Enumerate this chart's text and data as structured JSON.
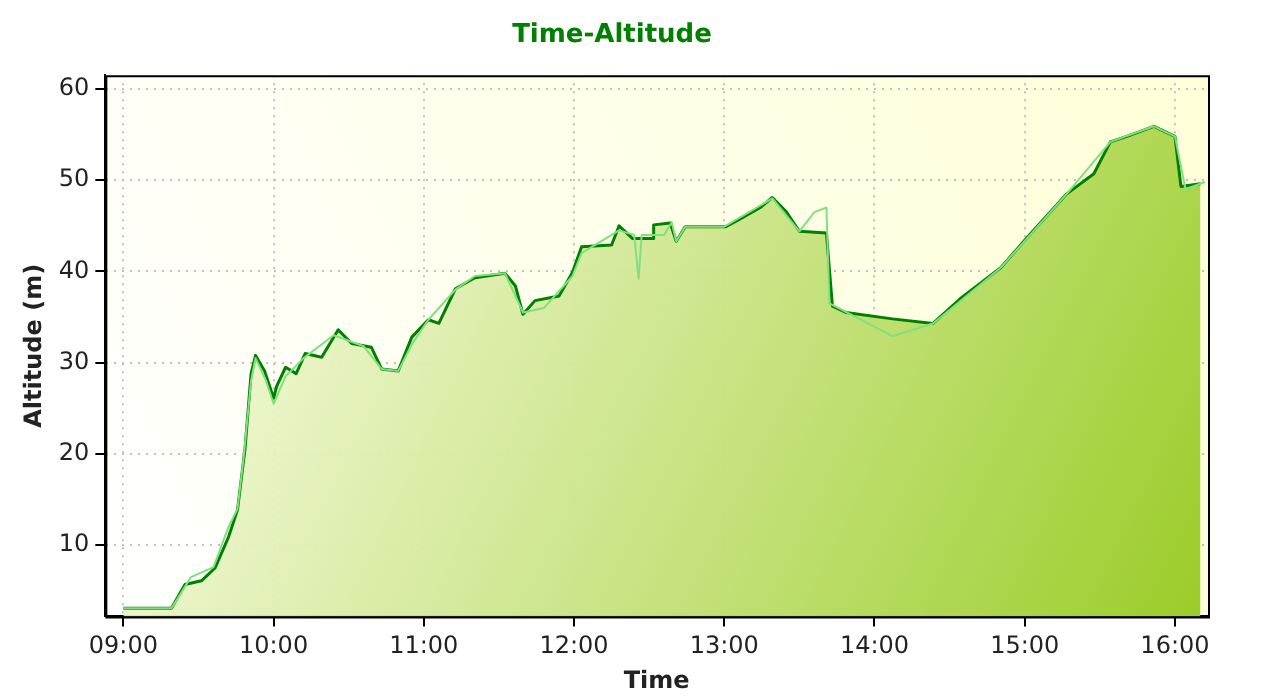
{
  "chart_data": {
    "type": "area",
    "title": "Time-Altitude",
    "xlabel": "Time",
    "ylabel": "Altitude (m)",
    "xlim": [
      8.88,
      16.22
    ],
    "ylim": [
      2.2,
      61.5
    ],
    "xticks": [
      {
        "value": 9,
        "label": "09:00"
      },
      {
        "value": 10,
        "label": "10:00"
      },
      {
        "value": 11,
        "label": "11:00"
      },
      {
        "value": 12,
        "label": "12:00"
      },
      {
        "value": 13,
        "label": "13:00"
      },
      {
        "value": 14,
        "label": "14:00"
      },
      {
        "value": 15,
        "label": "15:00"
      },
      {
        "value": 16,
        "label": "16:00"
      }
    ],
    "yticks": [
      10,
      20,
      30,
      40,
      50,
      60
    ],
    "grid": true,
    "legend": false,
    "marker": "none",
    "line_style": "solid",
    "series": [
      {
        "type": "line",
        "color": "#80e080",
        "x": [
          9.0,
          9.32,
          9.45,
          9.6,
          9.7,
          9.76,
          9.8,
          9.85,
          9.88,
          9.95,
          10.0,
          10.08,
          10.2,
          10.4,
          10.6,
          10.72,
          10.83,
          10.92,
          11.03,
          11.21,
          11.34,
          11.54,
          11.66,
          11.8,
          11.99,
          12.05,
          12.3,
          12.4,
          12.43,
          12.45,
          12.6,
          12.65,
          12.68,
          12.74,
          13.0,
          13.32,
          13.5,
          13.6,
          13.68,
          13.7,
          14.12,
          14.39,
          14.84,
          15.28,
          15.57,
          15.86,
          16.0,
          16.07,
          16.2
        ],
        "values": [
          3.1,
          3.1,
          6.5,
          7.6,
          12,
          14,
          19.5,
          28,
          30.5,
          28,
          25.5,
          28.5,
          30.5,
          33,
          31.8,
          29.3,
          29.1,
          32,
          34.7,
          38,
          39.5,
          39.8,
          35.5,
          36,
          39.5,
          42,
          44.5,
          44,
          39.2,
          44,
          44,
          45.4,
          43.3,
          44.9,
          44.9,
          48,
          44.4,
          46.5,
          47,
          36.5,
          32.9,
          34.3,
          40.4,
          48.5,
          54.2,
          55.9,
          54.8,
          49,
          49.8
        ]
      },
      {
        "type": "area",
        "color": "#008000",
        "x": [
          9.0,
          9.32,
          9.41,
          9.52,
          9.61,
          9.7,
          9.76,
          9.81,
          9.85,
          9.88,
          9.94,
          10.0,
          10.02,
          10.08,
          10.15,
          10.21,
          10.32,
          10.43,
          10.52,
          10.65,
          10.72,
          10.83,
          10.92,
          11.03,
          11.1,
          11.21,
          11.34,
          11.54,
          11.61,
          11.66,
          11.74,
          11.9,
          11.99,
          12.05,
          12.25,
          12.3,
          12.39,
          12.52,
          12.53,
          12.64,
          12.68,
          12.74,
          13.01,
          13.1,
          13.24,
          13.32,
          13.41,
          13.5,
          13.68,
          13.72,
          13.81,
          14.12,
          14.39,
          14.57,
          14.84,
          15.01,
          15.28,
          15.46,
          15.57,
          15.68,
          15.86,
          16.0,
          16.04,
          16.17
        ],
        "values": [
          3.1,
          3.1,
          5.7,
          6.1,
          7.5,
          10.9,
          13.9,
          20.6,
          28.8,
          30.8,
          29.1,
          26.1,
          27.4,
          29.5,
          28.8,
          31,
          30.6,
          33.6,
          32.1,
          31.7,
          29.3,
          29.1,
          32.8,
          34.7,
          34.3,
          38.1,
          39.3,
          39.8,
          38.4,
          35.3,
          36.8,
          37.3,
          39.9,
          42.7,
          42.9,
          45,
          43.6,
          43.6,
          45.1,
          45.3,
          43.3,
          44.9,
          44.9,
          45.7,
          47,
          48.1,
          46.6,
          44.4,
          44.2,
          36.2,
          35.5,
          34.8,
          34.3,
          37,
          40.4,
          43.6,
          48.5,
          50.7,
          54.2,
          54.8,
          55.9,
          54.8,
          49.3,
          49.6
        ]
      }
    ]
  }
}
